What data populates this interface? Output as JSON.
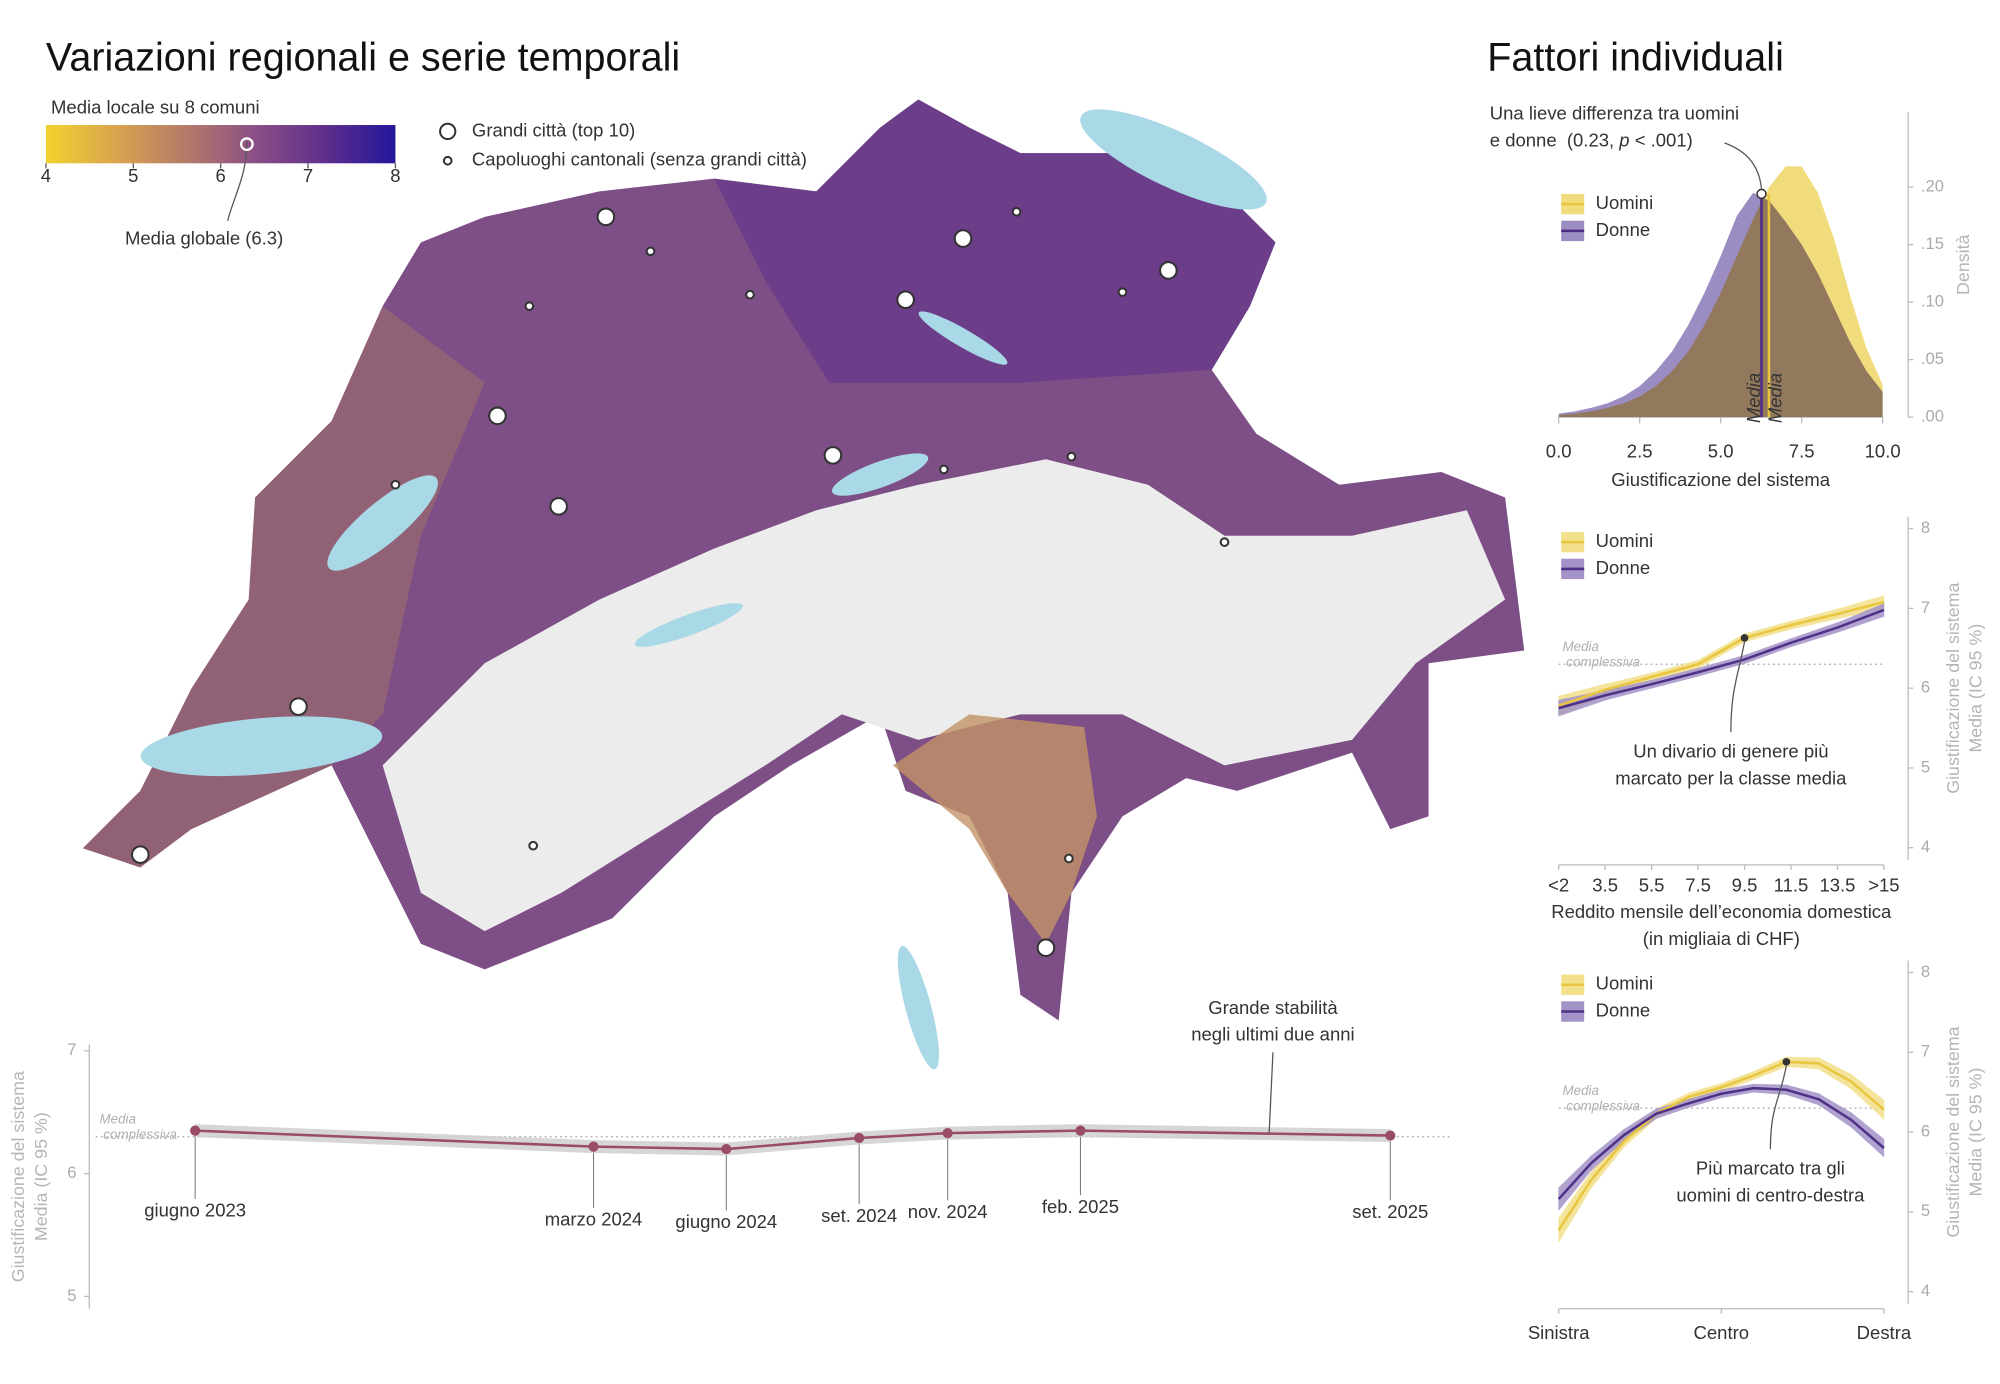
{
  "left_title": "Variazioni regionali e serie temporali",
  "right_title": "Fattori individuali",
  "map": {
    "legend_title": "Media locale su 8 comuni",
    "colorbar_lim": [
      4,
      8
    ],
    "colorbar_ticks": [
      4,
      5,
      6,
      7,
      8
    ],
    "colorbar_colors": [
      "#f2d22e",
      "#d9a44e",
      "#b57a68",
      "#8a4f86",
      "#5e2e8c",
      "#22179a"
    ],
    "global_mean": 6.3,
    "global_mean_label": "Media globale (6.3)",
    "city_legend": [
      "Grandi città (top 10)",
      "Capoluoghi cantonali (senza grandi città)"
    ]
  },
  "chart_data": [
    {
      "type": "line",
      "ylabel": [
        "Giustificazione del sistema",
        "Media (IC 95 %)"
      ],
      "x": [
        "2023-06",
        "2024-03",
        "2024-06",
        "2024-09",
        "2024-11",
        "2025-02",
        "2025-09"
      ],
      "x_labels": [
        "giugno 2023",
        "marzo 2024",
        "giugno 2024",
        "set. 2024",
        "nov. 2024",
        "feb. 2025",
        "set. 2025"
      ],
      "series": [
        {
          "color": "#9a4b68",
          "band_color": "#cfcfcf",
          "values": [
            6.35,
            6.22,
            6.2,
            6.29,
            6.33,
            6.35,
            6.31
          ],
          "ci": [
            0.05,
            0.05,
            0.05,
            0.05,
            0.05,
            0.05,
            0.05
          ]
        }
      ],
      "ylim": [
        4.9,
        7.05
      ],
      "yticks": [
        5,
        6,
        7
      ],
      "reference": 6.3,
      "reference_label": [
        "Media",
        "complessiva"
      ],
      "annotation": [
        "Grande stabilità",
        "negli ultimi due anni"
      ]
    },
    {
      "type": "area",
      "xlabel": "Giustificazione del sistema",
      "ylabel": "Densità",
      "x": [
        0,
        0.5,
        1,
        1.5,
        2,
        2.5,
        3,
        3.5,
        4,
        4.5,
        5,
        5.5,
        6,
        6.5,
        7,
        7.5,
        8,
        8.5,
        9,
        9.5,
        10
      ],
      "xlim": [
        0,
        10
      ],
      "xticks": [
        {
          "value": 0,
          "label": "0.0"
        },
        {
          "value": 2.5,
          "label": "2.5"
        },
        {
          "value": 5,
          "label": "5.0"
        },
        {
          "value": 7.5,
          "label": "7.5"
        },
        {
          "value": 10,
          "label": "10.0"
        }
      ],
      "ylim": [
        0,
        0.265
      ],
      "yticks": [
        {
          "value": 0,
          "label": ".00"
        },
        {
          "value": 0.05,
          "label": ".05"
        },
        {
          "value": 0.1,
          "label": ".10"
        },
        {
          "value": 0.15,
          "label": ".15"
        },
        {
          "value": 0.2,
          "label": ".20"
        }
      ],
      "series": [
        {
          "name": "Uomini",
          "color": "#f0dc7c",
          "line_color": "#e9c43d",
          "mean": 6.49,
          "values": [
            0.002,
            0.003,
            0.005,
            0.008,
            0.012,
            0.018,
            0.027,
            0.04,
            0.057,
            0.08,
            0.108,
            0.14,
            0.172,
            0.2,
            0.218,
            0.218,
            0.195,
            0.155,
            0.105,
            0.06,
            0.028
          ]
        },
        {
          "name": "Donne",
          "color": "#9b8cc2",
          "line_color": "#4b2d86",
          "mean": 6.26,
          "values": [
            0.003,
            0.005,
            0.008,
            0.012,
            0.018,
            0.027,
            0.04,
            0.057,
            0.08,
            0.108,
            0.14,
            0.175,
            0.195,
            0.188,
            0.17,
            0.15,
            0.125,
            0.095,
            0.065,
            0.04,
            0.022
          ]
        }
      ],
      "mean_label": "Media",
      "annotation": [
        "Una lieve differenza tra uomini",
        "e donne  (0.23, ",
        "p",
        " < .001)"
      ]
    },
    {
      "type": "line",
      "xlabel": [
        "Reddito mensile dell’economia domestica",
        "(in migliaia di CHF)"
      ],
      "ylabel": [
        "Giustificazione del sistema",
        "Media (IC 95 %)"
      ],
      "categories": [
        "<2",
        "3.5",
        "5.5",
        "7.5",
        "9.5",
        "11.5",
        "13.5",
        ">15"
      ],
      "ylim": [
        3.85,
        8.15
      ],
      "yticks": [
        4,
        5,
        6,
        7,
        8
      ],
      "series": [
        {
          "name": "Uomini",
          "color": "#e9c63f",
          "band_color": "#f3e08a",
          "values": [
            5.78,
            5.98,
            6.14,
            6.3,
            6.63,
            6.79,
            6.93,
            7.08
          ],
          "ci": [
            0.12,
            0.07,
            0.05,
            0.05,
            0.05,
            0.05,
            0.06,
            0.08
          ]
        },
        {
          "name": "Donne",
          "color": "#4f3287",
          "band_color": "#a493c8",
          "values": [
            5.75,
            5.91,
            6.05,
            6.2,
            6.36,
            6.57,
            6.76,
            6.98
          ],
          "ci": [
            0.1,
            0.06,
            0.05,
            0.05,
            0.05,
            0.05,
            0.06,
            0.08
          ]
        }
      ],
      "reference": 6.3,
      "reference_label": [
        "Media",
        "complessiva"
      ],
      "annotation": [
        "Un divario di genere più",
        "marcato per la classe media"
      ]
    },
    {
      "type": "line",
      "ylabel": [
        "Giustificazione del sistema",
        "Media (IC 95 %)"
      ],
      "categories": [
        "Sinistra",
        null,
        null,
        null,
        null,
        "Centro",
        null,
        null,
        null,
        null,
        "Destra"
      ],
      "ylim": [
        3.85,
        8.15
      ],
      "yticks": [
        4,
        5,
        6,
        7,
        8
      ],
      "series": [
        {
          "name": "Uomini",
          "color": "#e9c63f",
          "band_color": "#f3e08a",
          "values": [
            4.77,
            5.4,
            5.88,
            6.23,
            6.44,
            6.56,
            6.71,
            6.88,
            6.86,
            6.63,
            6.28
          ],
          "ci": [
            0.15,
            0.1,
            0.07,
            0.06,
            0.05,
            0.05,
            0.05,
            0.06,
            0.07,
            0.09,
            0.12
          ]
        },
        {
          "name": "Donne",
          "color": "#4f3287",
          "band_color": "#a493c8",
          "values": [
            5.16,
            5.61,
            5.96,
            6.23,
            6.36,
            6.48,
            6.55,
            6.53,
            6.41,
            6.15,
            5.8
          ],
          "ci": [
            0.14,
            0.09,
            0.07,
            0.06,
            0.05,
            0.05,
            0.05,
            0.06,
            0.07,
            0.09,
            0.11
          ]
        }
      ],
      "reference": 6.3,
      "reference_label": [
        "Media",
        "complessiva"
      ],
      "annotation": [
        "Più marcato tra gli",
        "uomini di centro-destra"
      ]
    }
  ]
}
